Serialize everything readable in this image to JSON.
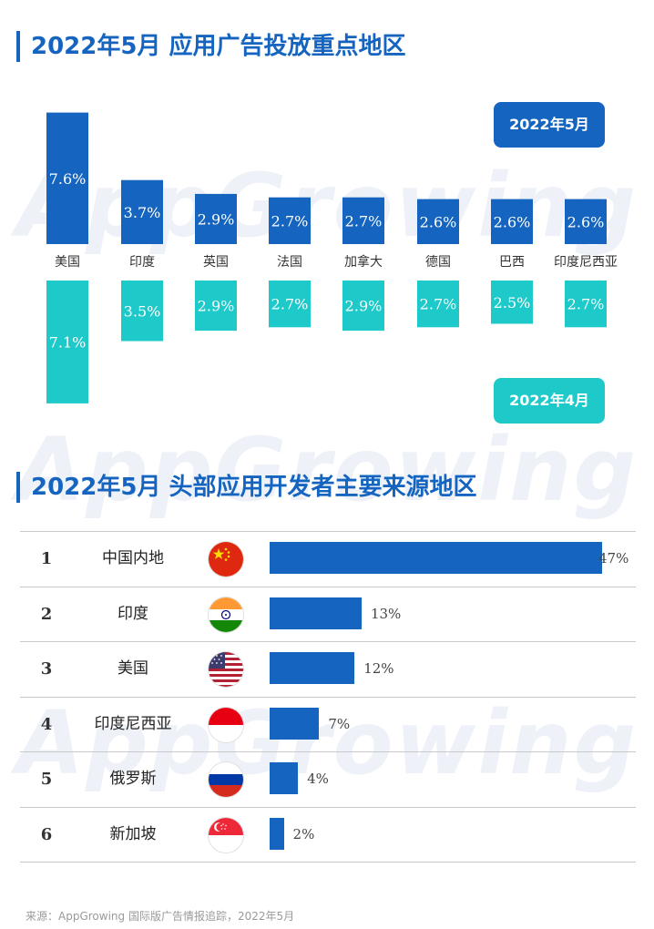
{
  "watermark": "AppGrowing",
  "section1": {
    "title": "2022年5月 应用广告投放重点地区",
    "badge_may": "2022年5月",
    "badge_apr": "2022年4月"
  },
  "chart_data": {
    "type": "bar",
    "title": "2022年5月 应用广告投放重点地区",
    "categories": [
      "美国",
      "印度",
      "英国",
      "法国",
      "加拿大",
      "德国",
      "巴西",
      "印度尼西亚"
    ],
    "series": [
      {
        "name": "2022年5月",
        "values": [
          7.6,
          3.7,
          2.9,
          2.7,
          2.7,
          2.6,
          2.6,
          2.6
        ],
        "labels": [
          "7.6%",
          "3.7%",
          "2.9%",
          "2.7%",
          "2.7%",
          "2.6%",
          "2.6%",
          "2.6%"
        ],
        "color": "#1565c0"
      },
      {
        "name": "2022年4月",
        "values": [
          7.1,
          3.5,
          2.9,
          2.7,
          2.9,
          2.7,
          2.5,
          2.7
        ],
        "labels": [
          "7.1%",
          "3.5%",
          "2.9%",
          "2.7%",
          "2.9%",
          "2.7%",
          "2.5%",
          "2.7%"
        ],
        "color": "#1dc9c9"
      }
    ],
    "unit": "%"
  },
  "section2": {
    "title": "2022年5月 头部应用开发者主要来源地区",
    "rows": [
      {
        "rank": "1",
        "name": "中国内地",
        "flag": "china-flag-icon",
        "value": 47,
        "label": "47%"
      },
      {
        "rank": "2",
        "name": "印度",
        "flag": "india-flag-icon",
        "value": 13,
        "label": "13%"
      },
      {
        "rank": "3",
        "name": "美国",
        "flag": "usa-flag-icon",
        "value": 12,
        "label": "12%"
      },
      {
        "rank": "4",
        "name": "印度尼西亚",
        "flag": "indonesia-flag-icon",
        "value": 7,
        "label": "7%"
      },
      {
        "rank": "5",
        "name": "俄罗斯",
        "flag": "russia-flag-icon",
        "value": 4,
        "label": "4%"
      },
      {
        "rank": "6",
        "name": "新加坡",
        "flag": "singapore-flag-icon",
        "value": 2,
        "label": "2%"
      }
    ]
  },
  "colors": {
    "primary": "#1565c0",
    "secondary": "#1dc9c9",
    "divider": "#c9c9c9"
  },
  "source": "来源：AppGrowing 国际版广告情报追踪，2022年5月"
}
